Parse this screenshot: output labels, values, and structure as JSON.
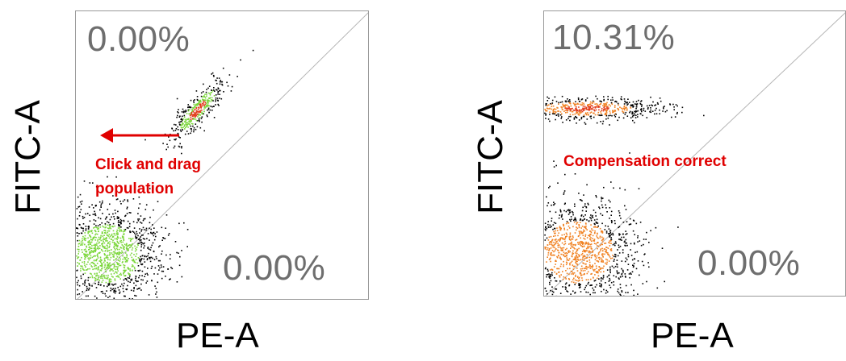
{
  "panels": [
    {
      "y_label": "FITC-A",
      "x_label": "PE-A",
      "upper_left_percent": "0.00%",
      "lower_right_percent": "0.00%",
      "annotation_line1": "Click and drag",
      "annotation_line2": "population",
      "dot_colors": {
        "outer": "#000000",
        "mid": "#7ad63a",
        "core": "#e23a1a"
      }
    },
    {
      "y_label": "FITC-A",
      "x_label": "PE-A",
      "upper_left_percent": "10.31%",
      "lower_right_percent": "0.00%",
      "annotation_line1": "Compensation correct",
      "dot_colors": {
        "outer": "#000000",
        "mid": "#f08020",
        "core": "#e23a1a"
      }
    }
  ],
  "arrow_color": "#e00000"
}
